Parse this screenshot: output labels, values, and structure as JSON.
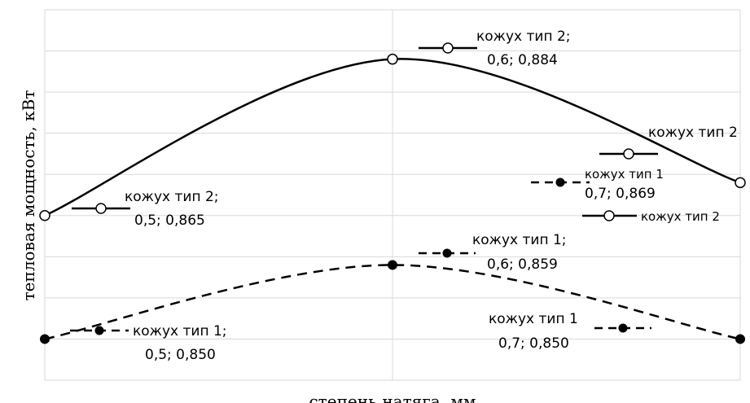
{
  "chart_data": {
    "type": "line",
    "xlabel": "степень натяга, мм",
    "ylabel": "тепловая мощность, кВт",
    "x": [
      0.5,
      0.6,
      0.7
    ],
    "xlim": [
      0.5,
      0.7
    ],
    "ylim": [
      0.845,
      0.89
    ],
    "grid": "vertical and horizontal",
    "series": [
      {
        "name": "кожух тип 2",
        "values": [
          0.865,
          0.884,
          0.869
        ],
        "style": "solid",
        "marker": "open-circle",
        "color": "#000000"
      },
      {
        "name": "кожух тип 1",
        "values": [
          0.85,
          0.859,
          0.85
        ],
        "style": "dashed",
        "marker": "filled-circle",
        "color": "#000000"
      }
    ],
    "annotations": [
      {
        "line1": "кожух тип 2;",
        "line2": "0,5; 0,865"
      },
      {
        "line1": "кожух тип 2;",
        "line2": "0,6; 0,884"
      },
      {
        "line1": "кожух тип 2",
        "line2": ""
      },
      {
        "line1": "кожух тип 1",
        "line2": "0,7; 0,869"
      },
      {
        "line1": "кожух тип 1;",
        "line2": "0,6; 0,859"
      },
      {
        "line1": "кожух тип 1;",
        "line2": "0,5; 0,850"
      },
      {
        "line1": "кожух тип 1",
        "line2": "0,7; 0,850"
      }
    ],
    "legend": {
      "position": "right",
      "label": "кожух тип 2"
    }
  }
}
